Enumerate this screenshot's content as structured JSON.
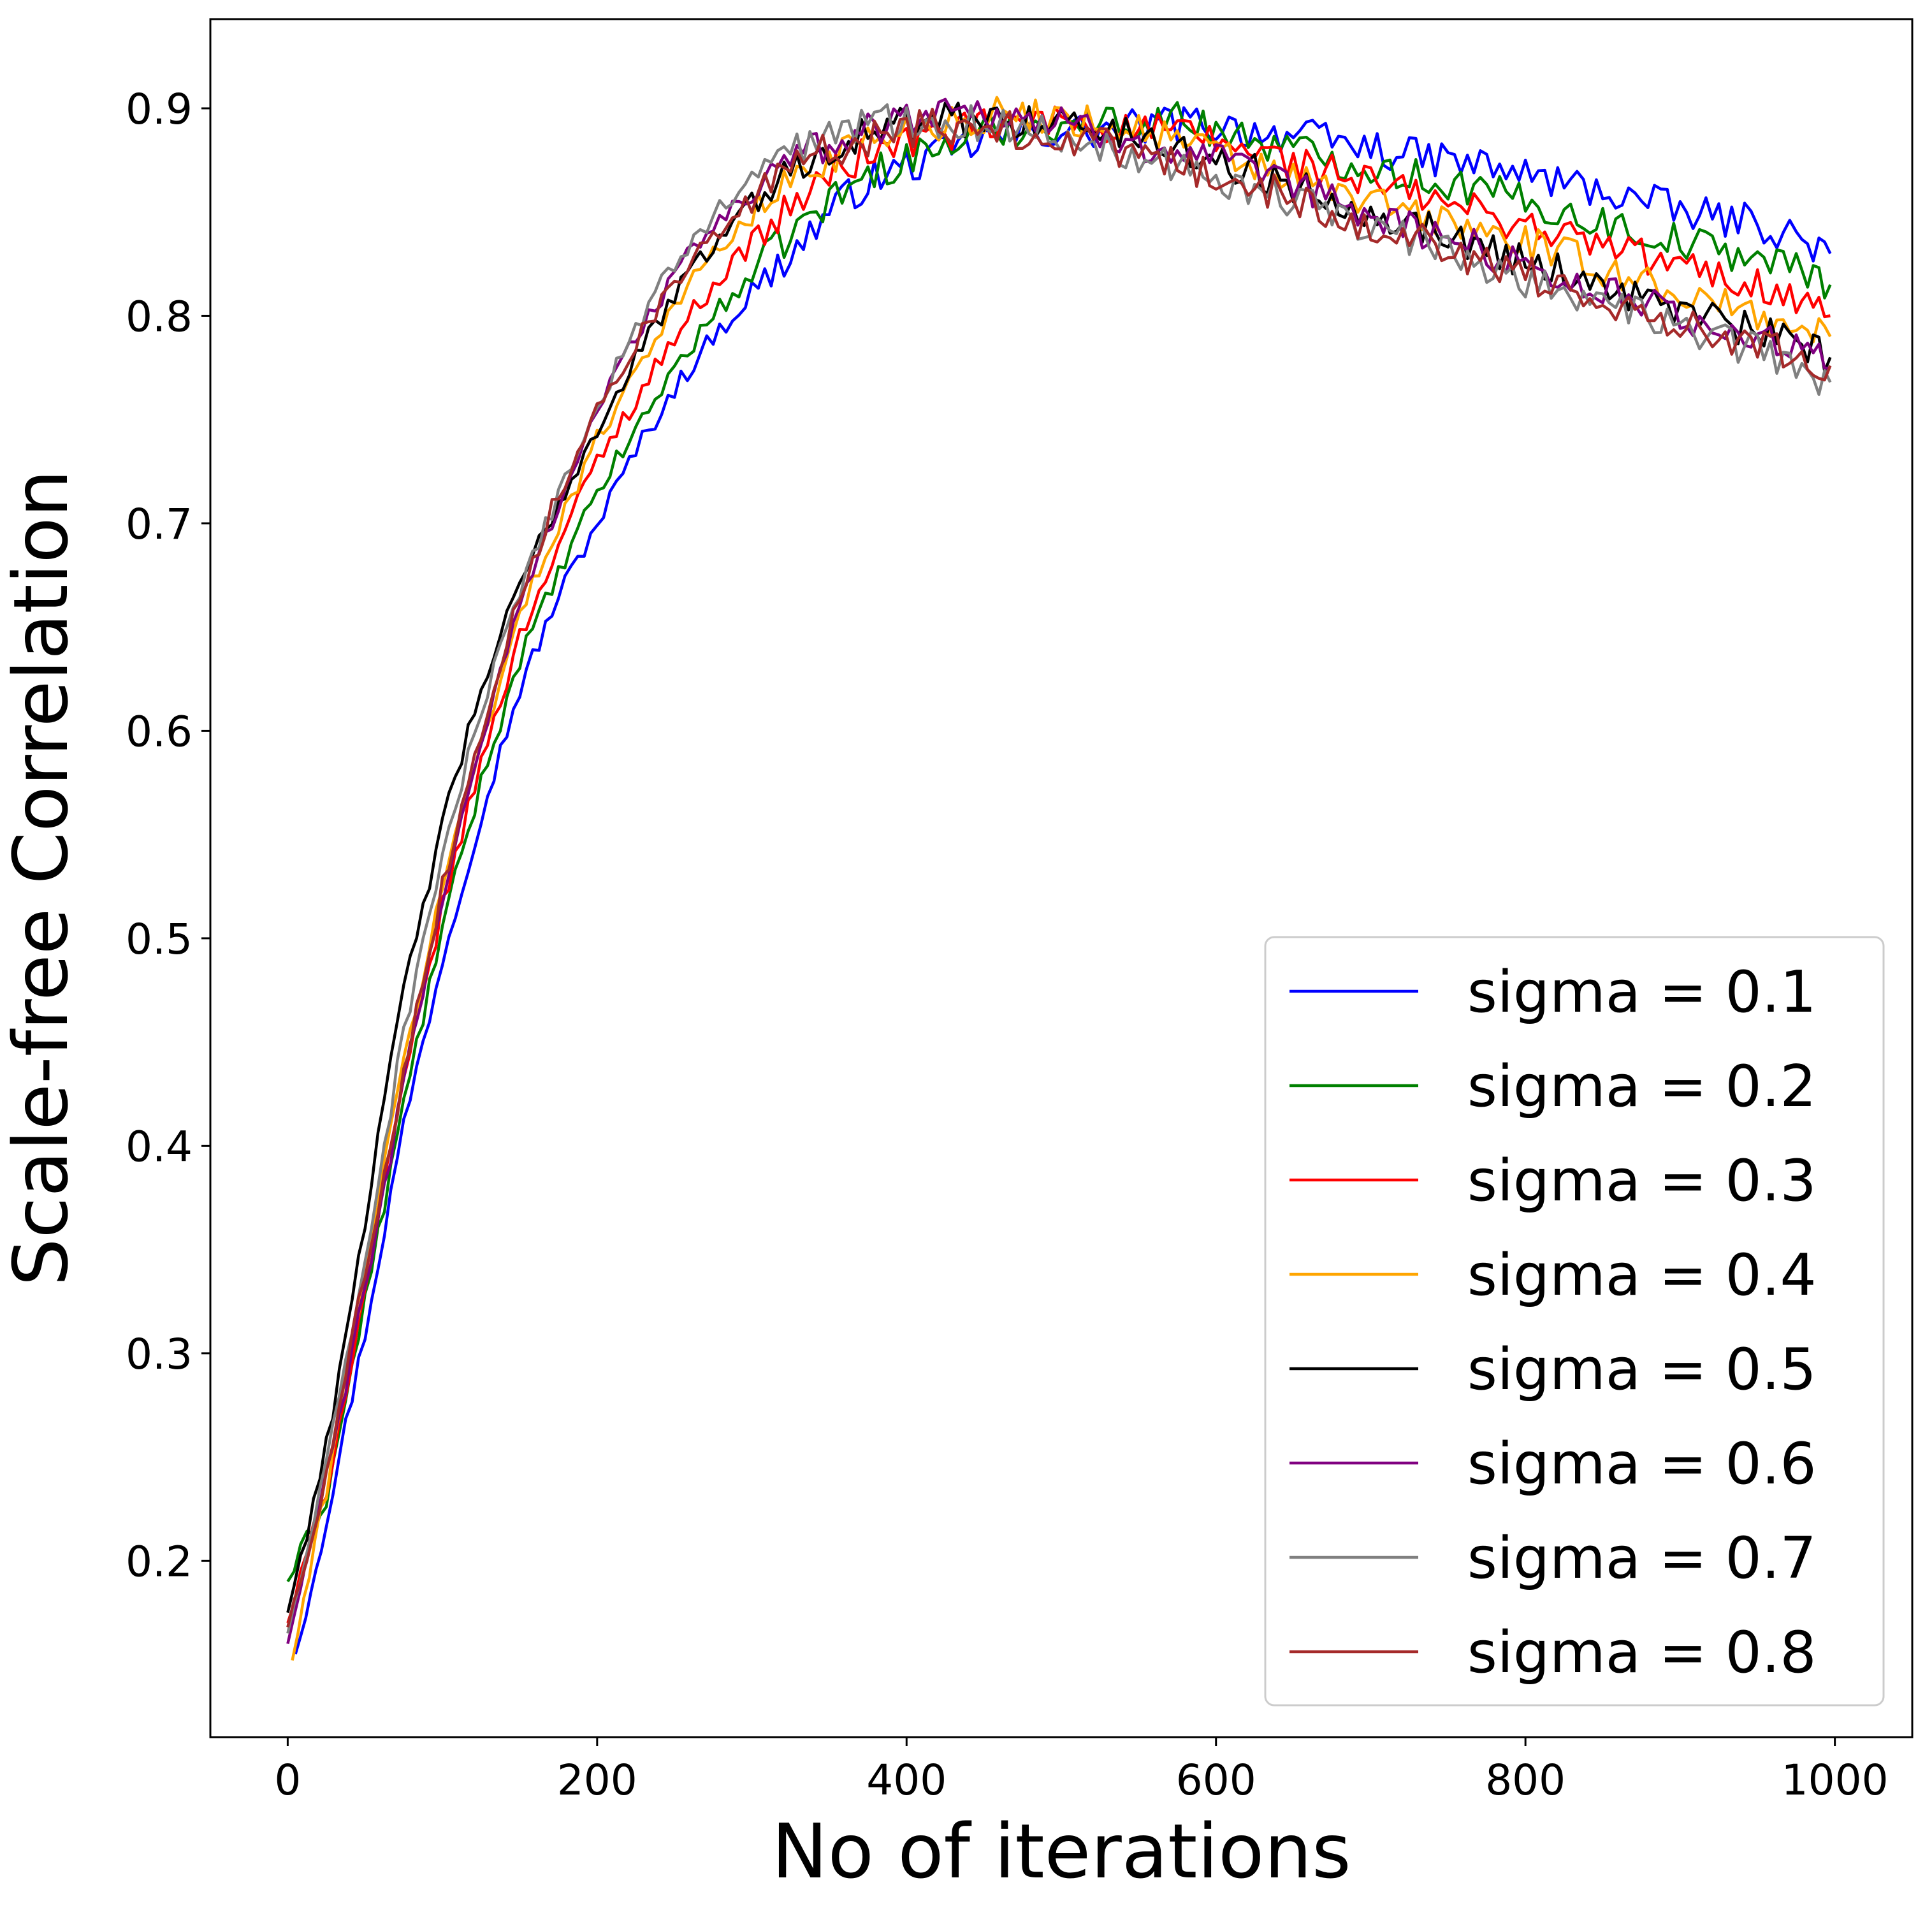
{
  "chart_data": {
    "type": "line",
    "title": "",
    "xlabel": "No of iterations",
    "ylabel": "Scale-free Correlation",
    "xlim": [
      -50,
      1050
    ],
    "ylim": [
      0.115,
      0.943
    ],
    "xticks": [
      0,
      200,
      400,
      600,
      800,
      1000
    ],
    "yticks": [
      0.2,
      0.3,
      0.4,
      0.5,
      0.6,
      0.7,
      0.8,
      0.9
    ],
    "grid": false,
    "legend_position": "lower-right",
    "series": [
      {
        "name": "sigma = 0.1",
        "color": "#0000ff",
        "x": [
          5,
          25,
          50,
          75,
          100,
          125,
          150,
          175,
          200,
          225,
          250,
          275,
          300,
          325,
          350,
          375,
          400,
          425,
          450,
          475,
          500,
          525,
          550,
          575,
          600,
          625,
          650,
          675,
          700,
          725,
          750,
          775,
          800,
          825,
          850,
          875,
          900,
          925,
          950,
          975,
          997
        ],
        "y": [
          0.155,
          0.22,
          0.31,
          0.41,
          0.49,
          0.56,
          0.62,
          0.665,
          0.7,
          0.735,
          0.765,
          0.79,
          0.81,
          0.83,
          0.85,
          0.865,
          0.872,
          0.878,
          0.885,
          0.888,
          0.889,
          0.889,
          0.891,
          0.893,
          0.892,
          0.889,
          0.887,
          0.884,
          0.881,
          0.877,
          0.875,
          0.872,
          0.868,
          0.864,
          0.86,
          0.856,
          0.85,
          0.847,
          0.845,
          0.838,
          0.83
        ]
      },
      {
        "name": "sigma = 0.2",
        "color": "#008000",
        "x": [
          0,
          25,
          50,
          75,
          100,
          125,
          150,
          175,
          200,
          225,
          250,
          275,
          300,
          325,
          350,
          375,
          400,
          425,
          450,
          475,
          500,
          525,
          550,
          575,
          600,
          625,
          650,
          675,
          700,
          725,
          750,
          775,
          800,
          825,
          850,
          875,
          900,
          925,
          950,
          975,
          997
        ],
        "y": [
          0.19,
          0.23,
          0.325,
          0.42,
          0.505,
          0.575,
          0.635,
          0.675,
          0.715,
          0.745,
          0.775,
          0.8,
          0.82,
          0.84,
          0.855,
          0.868,
          0.876,
          0.882,
          0.888,
          0.891,
          0.893,
          0.893,
          0.894,
          0.895,
          0.89,
          0.885,
          0.88,
          0.876,
          0.872,
          0.868,
          0.864,
          0.86,
          0.855,
          0.85,
          0.845,
          0.84,
          0.836,
          0.832,
          0.828,
          0.823,
          0.815
        ]
      },
      {
        "name": "sigma = 0.3",
        "color": "#ff0000",
        "x": [
          0,
          25,
          50,
          75,
          100,
          125,
          150,
          175,
          200,
          225,
          250,
          275,
          300,
          325,
          350,
          375,
          400,
          425,
          450,
          475,
          500,
          525,
          550,
          575,
          600,
          625,
          650,
          675,
          700,
          725,
          750,
          775,
          800,
          825,
          850,
          875,
          900,
          925,
          950,
          975,
          997
        ],
        "y": [
          0.17,
          0.235,
          0.33,
          0.43,
          0.515,
          0.585,
          0.645,
          0.69,
          0.73,
          0.76,
          0.79,
          0.815,
          0.835,
          0.852,
          0.868,
          0.878,
          0.884,
          0.888,
          0.891,
          0.893,
          0.894,
          0.892,
          0.89,
          0.888,
          0.884,
          0.879,
          0.874,
          0.869,
          0.864,
          0.859,
          0.854,
          0.849,
          0.844,
          0.839,
          0.834,
          0.829,
          0.824,
          0.819,
          0.815,
          0.808,
          0.8
        ]
      },
      {
        "name": "sigma = 0.4",
        "color": "#ffa500",
        "x": [
          3,
          25,
          50,
          75,
          100,
          125,
          150,
          175,
          200,
          225,
          250,
          275,
          300,
          325,
          350,
          375,
          400,
          425,
          450,
          475,
          500,
          525,
          550,
          575,
          600,
          625,
          650,
          675,
          700,
          725,
          750,
          775,
          800,
          825,
          850,
          875,
          900,
          925,
          950,
          975,
          997
        ],
        "y": [
          0.152,
          0.235,
          0.34,
          0.44,
          0.525,
          0.595,
          0.655,
          0.7,
          0.74,
          0.775,
          0.805,
          0.83,
          0.848,
          0.865,
          0.877,
          0.885,
          0.89,
          0.894,
          0.896,
          0.897,
          0.896,
          0.893,
          0.89,
          0.885,
          0.878,
          0.872,
          0.866,
          0.86,
          0.855,
          0.85,
          0.845,
          0.84,
          0.835,
          0.829,
          0.823,
          0.817,
          0.811,
          0.805,
          0.8,
          0.795,
          0.79
        ]
      },
      {
        "name": "sigma = 0.5",
        "color": "#000000",
        "x": [
          0,
          25,
          50,
          75,
          100,
          125,
          150,
          175,
          200,
          225,
          250,
          275,
          300,
          325,
          350,
          375,
          400,
          425,
          450,
          475,
          500,
          525,
          550,
          575,
          600,
          625,
          650,
          675,
          700,
          725,
          750,
          775,
          800,
          825,
          850,
          875,
          900,
          925,
          950,
          975,
          997
        ],
        "y": [
          0.175,
          0.255,
          0.365,
          0.475,
          0.555,
          0.62,
          0.67,
          0.71,
          0.745,
          0.78,
          0.81,
          0.835,
          0.855,
          0.87,
          0.882,
          0.888,
          0.892,
          0.894,
          0.895,
          0.895,
          0.893,
          0.89,
          0.886,
          0.881,
          0.875,
          0.869,
          0.863,
          0.857,
          0.851,
          0.845,
          0.839,
          0.833,
          0.827,
          0.821,
          0.815,
          0.809,
          0.803,
          0.797,
          0.792,
          0.786,
          0.78
        ]
      },
      {
        "name": "sigma = 0.6",
        "color": "#800080",
        "x": [
          0,
          25,
          50,
          75,
          100,
          125,
          150,
          175,
          200,
          225,
          250,
          275,
          300,
          325,
          350,
          375,
          400,
          425,
          450,
          475,
          500,
          525,
          550,
          575,
          600,
          625,
          650,
          675,
          700,
          725,
          750,
          775,
          800,
          825,
          850,
          875,
          900,
          925,
          950,
          975,
          997
        ],
        "y": [
          0.16,
          0.24,
          0.33,
          0.43,
          0.52,
          0.595,
          0.66,
          0.71,
          0.755,
          0.79,
          0.82,
          0.843,
          0.86,
          0.874,
          0.884,
          0.89,
          0.896,
          0.9,
          0.899,
          0.896,
          0.892,
          0.888,
          0.884,
          0.879,
          0.874,
          0.868,
          0.862,
          0.856,
          0.849,
          0.843,
          0.837,
          0.831,
          0.825,
          0.818,
          0.812,
          0.806,
          0.8,
          0.794,
          0.789,
          0.784,
          0.775
        ]
      },
      {
        "name": "sigma = 0.7",
        "color": "#808080",
        "x": [
          0,
          25,
          50,
          75,
          100,
          125,
          150,
          175,
          200,
          225,
          250,
          275,
          300,
          325,
          350,
          375,
          400,
          425,
          450,
          475,
          500,
          525,
          550,
          575,
          600,
          625,
          650,
          675,
          700,
          725,
          750,
          775,
          800,
          825,
          850,
          875,
          900,
          925,
          950,
          975,
          997
        ],
        "y": [
          0.165,
          0.245,
          0.345,
          0.455,
          0.54,
          0.61,
          0.665,
          0.715,
          0.755,
          0.795,
          0.825,
          0.848,
          0.866,
          0.879,
          0.888,
          0.893,
          0.895,
          0.894,
          0.893,
          0.89,
          0.887,
          0.883,
          0.878,
          0.873,
          0.867,
          0.861,
          0.855,
          0.849,
          0.843,
          0.837,
          0.831,
          0.825,
          0.818,
          0.812,
          0.806,
          0.8,
          0.794,
          0.789,
          0.784,
          0.777,
          0.768
        ]
      },
      {
        "name": "sigma = 0.8",
        "color": "#a52a2a",
        "x": [
          0,
          25,
          50,
          75,
          100,
          125,
          150,
          175,
          200,
          225,
          250,
          275,
          300,
          325,
          350,
          375,
          400,
          425,
          450,
          475,
          500,
          525,
          550,
          575,
          600,
          625,
          650,
          675,
          700,
          725,
          750,
          775,
          800,
          825,
          850,
          875,
          900,
          925,
          950,
          975,
          997
        ],
        "y": [
          0.168,
          0.24,
          0.34,
          0.435,
          0.525,
          0.6,
          0.665,
          0.715,
          0.755,
          0.788,
          0.815,
          0.838,
          0.856,
          0.87,
          0.88,
          0.886,
          0.89,
          0.891,
          0.891,
          0.889,
          0.886,
          0.882,
          0.878,
          0.873,
          0.868,
          0.862,
          0.856,
          0.85,
          0.844,
          0.838,
          0.832,
          0.826,
          0.82,
          0.814,
          0.808,
          0.802,
          0.797,
          0.792,
          0.787,
          0.782,
          0.776
        ]
      }
    ]
  }
}
